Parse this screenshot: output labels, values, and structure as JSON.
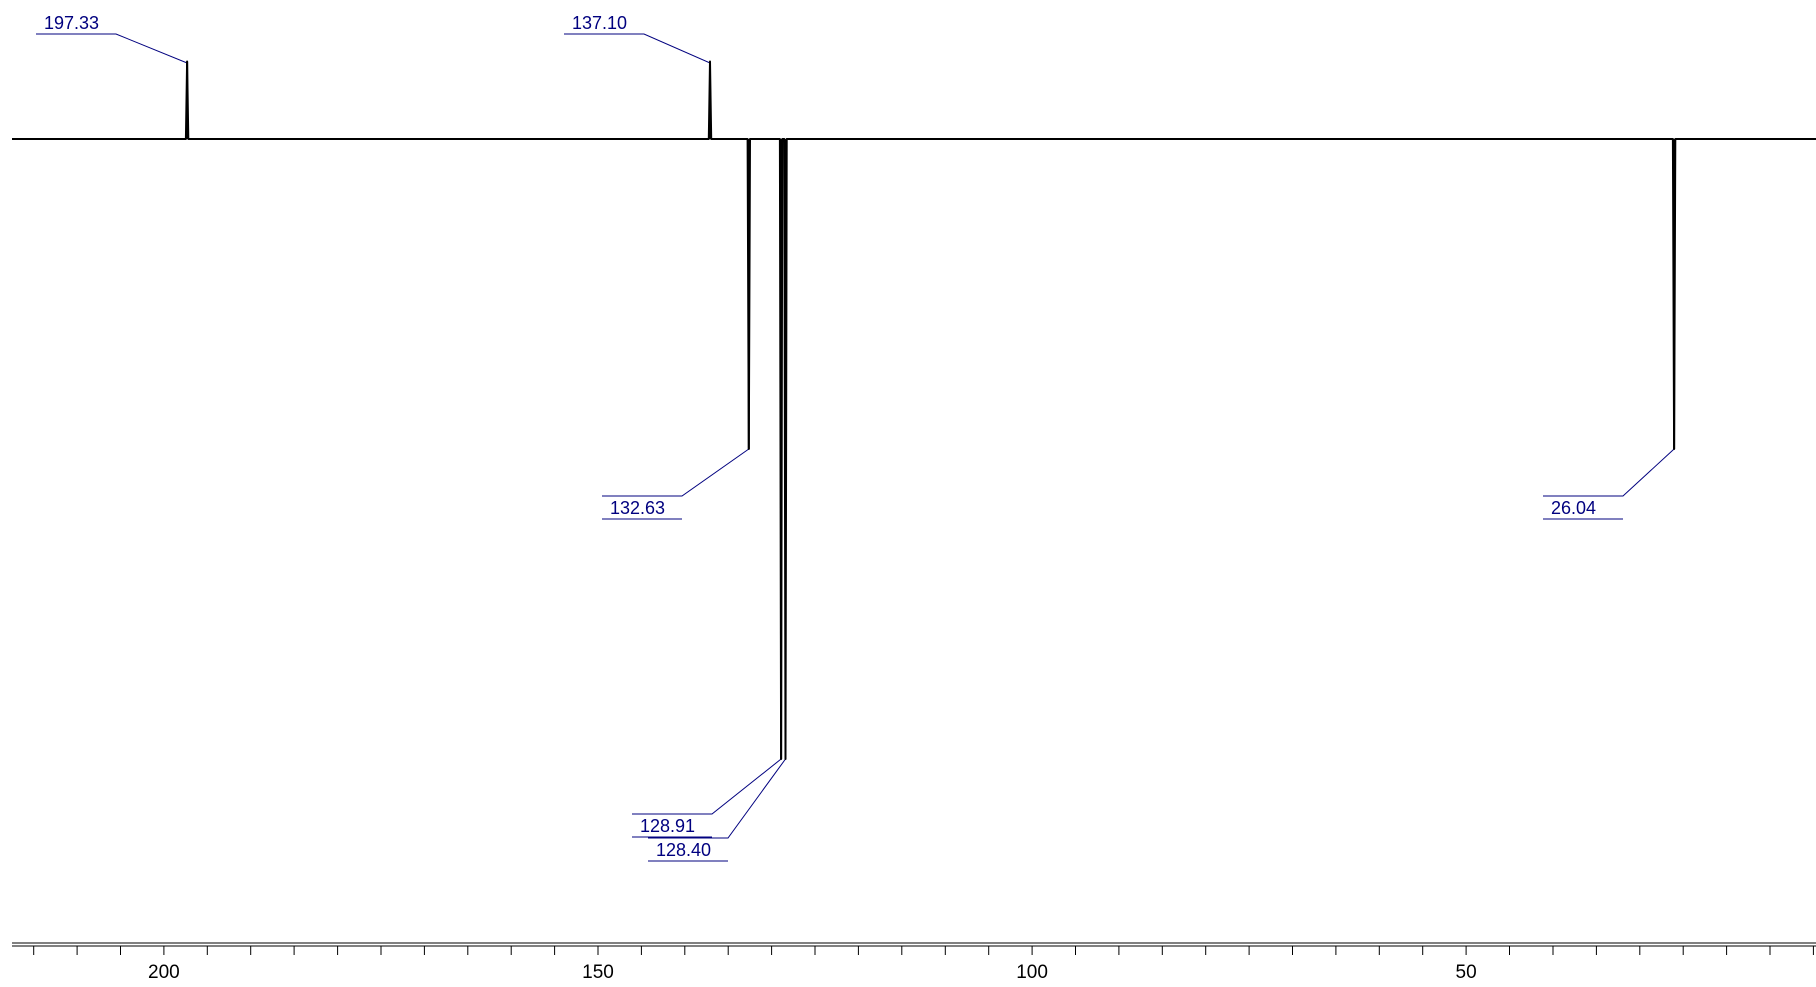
{
  "chart_data": {
    "type": "line",
    "x_reversed": true,
    "xlim": [
      217.5,
      9.7
    ],
    "x_major_ticks": [
      200,
      150,
      100,
      50
    ],
    "x_minor_tick_step": 5,
    "tick_labels": [
      "200",
      "150",
      "100",
      "50"
    ],
    "title": "",
    "xlabel": "",
    "ylabel": "",
    "grid": false,
    "legend": "none",
    "line_color": "#000000",
    "label_color": "#00007f",
    "peaks": [
      {
        "shift": 197.33,
        "label": "197.33",
        "intensity": 0.25,
        "label_side": "above"
      },
      {
        "shift": 137.1,
        "label": "137.10",
        "intensity": 0.25,
        "label_side": "above"
      },
      {
        "shift": 132.63,
        "label": "132.63",
        "intensity": -1.0,
        "label_side": "below"
      },
      {
        "shift": 128.91,
        "label": "128.91",
        "intensity": -2.0,
        "label_side": "below"
      },
      {
        "shift": 128.4,
        "label": "128.40",
        "intensity": -2.0,
        "label_side": "below"
      },
      {
        "shift": 26.04,
        "label": "26.04",
        "intensity": -1.0,
        "label_side": "below"
      }
    ]
  }
}
